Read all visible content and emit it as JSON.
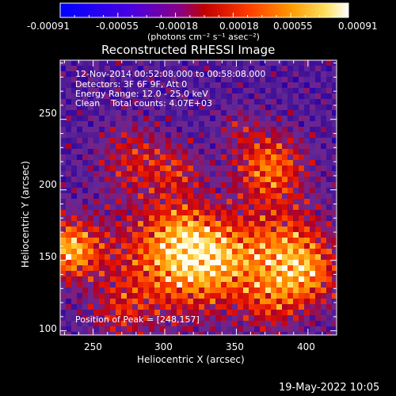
{
  "colorbar": {
    "tick_labels": [
      "-0.00091",
      "-0.00055",
      "-0.00018",
      "0.00018",
      "0.00055",
      "0.00091"
    ],
    "unit_label": "(photons cm⁻² s⁻¹ asec⁻²)"
  },
  "title": "Reconstructed RHESSI Image",
  "info": {
    "time_range": "12-Nov-2014 00:52:08.000 to 00:58:08.000",
    "detectors": "Detectors: 3F 6F 9F, Att 0",
    "energy": "Energy Range: 12.0 - 25.0 keV",
    "clean": "Clean    Total counts: 4.07E+03",
    "peak": "Position of Peak = [248,157]"
  },
  "axes": {
    "xlabel": "Heliocentric X (arcsec)",
    "ylabel": "Heliocentric Y (arcsec)",
    "x_ticks": [
      "250",
      "300",
      "350",
      "400"
    ],
    "y_ticks": [
      "100",
      "150",
      "200",
      "250"
    ],
    "xlim": [
      227,
      420
    ],
    "ylim": [
      97,
      292
    ]
  },
  "footer": {
    "date": "19-May-2022 10:05"
  }
}
